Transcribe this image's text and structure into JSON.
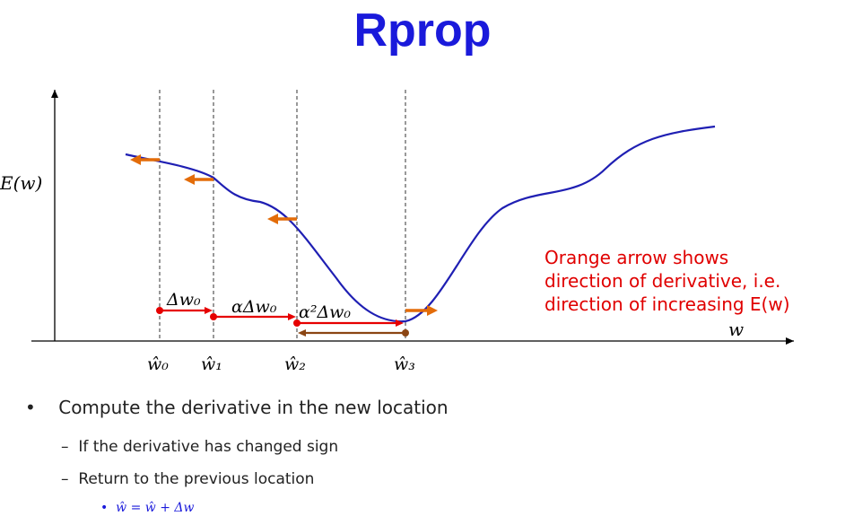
{
  "title": "Rprop",
  "colors": {
    "title": "#1a1adb",
    "curve": "#1f1fb3",
    "step_arrow": "#e60000",
    "derivative_arrow": "#e36c09",
    "return_arrow": "#8b4513",
    "note_text": "#e00000",
    "formula": "#1a1adb"
  },
  "axes": {
    "y_label": "E(w)",
    "x_label": "w"
  },
  "x_ticks": [
    "ŵ₀",
    "ŵ₁",
    "ŵ₂",
    "ŵ₃"
  ],
  "step_labels": [
    "Δw₀",
    "αΔw₀",
    "α²Δw₀"
  ],
  "note_lines": [
    "Orange arrow shows",
    "direction of derivative, i.e.",
    "direction of  increasing E(w)"
  ],
  "bullets": {
    "main": "Compute the derivative in the new location",
    "sub": [
      "If the derivative has changed sign",
      "Return to the previous location"
    ],
    "formula": "ŵ = ŵ + Δw"
  }
}
